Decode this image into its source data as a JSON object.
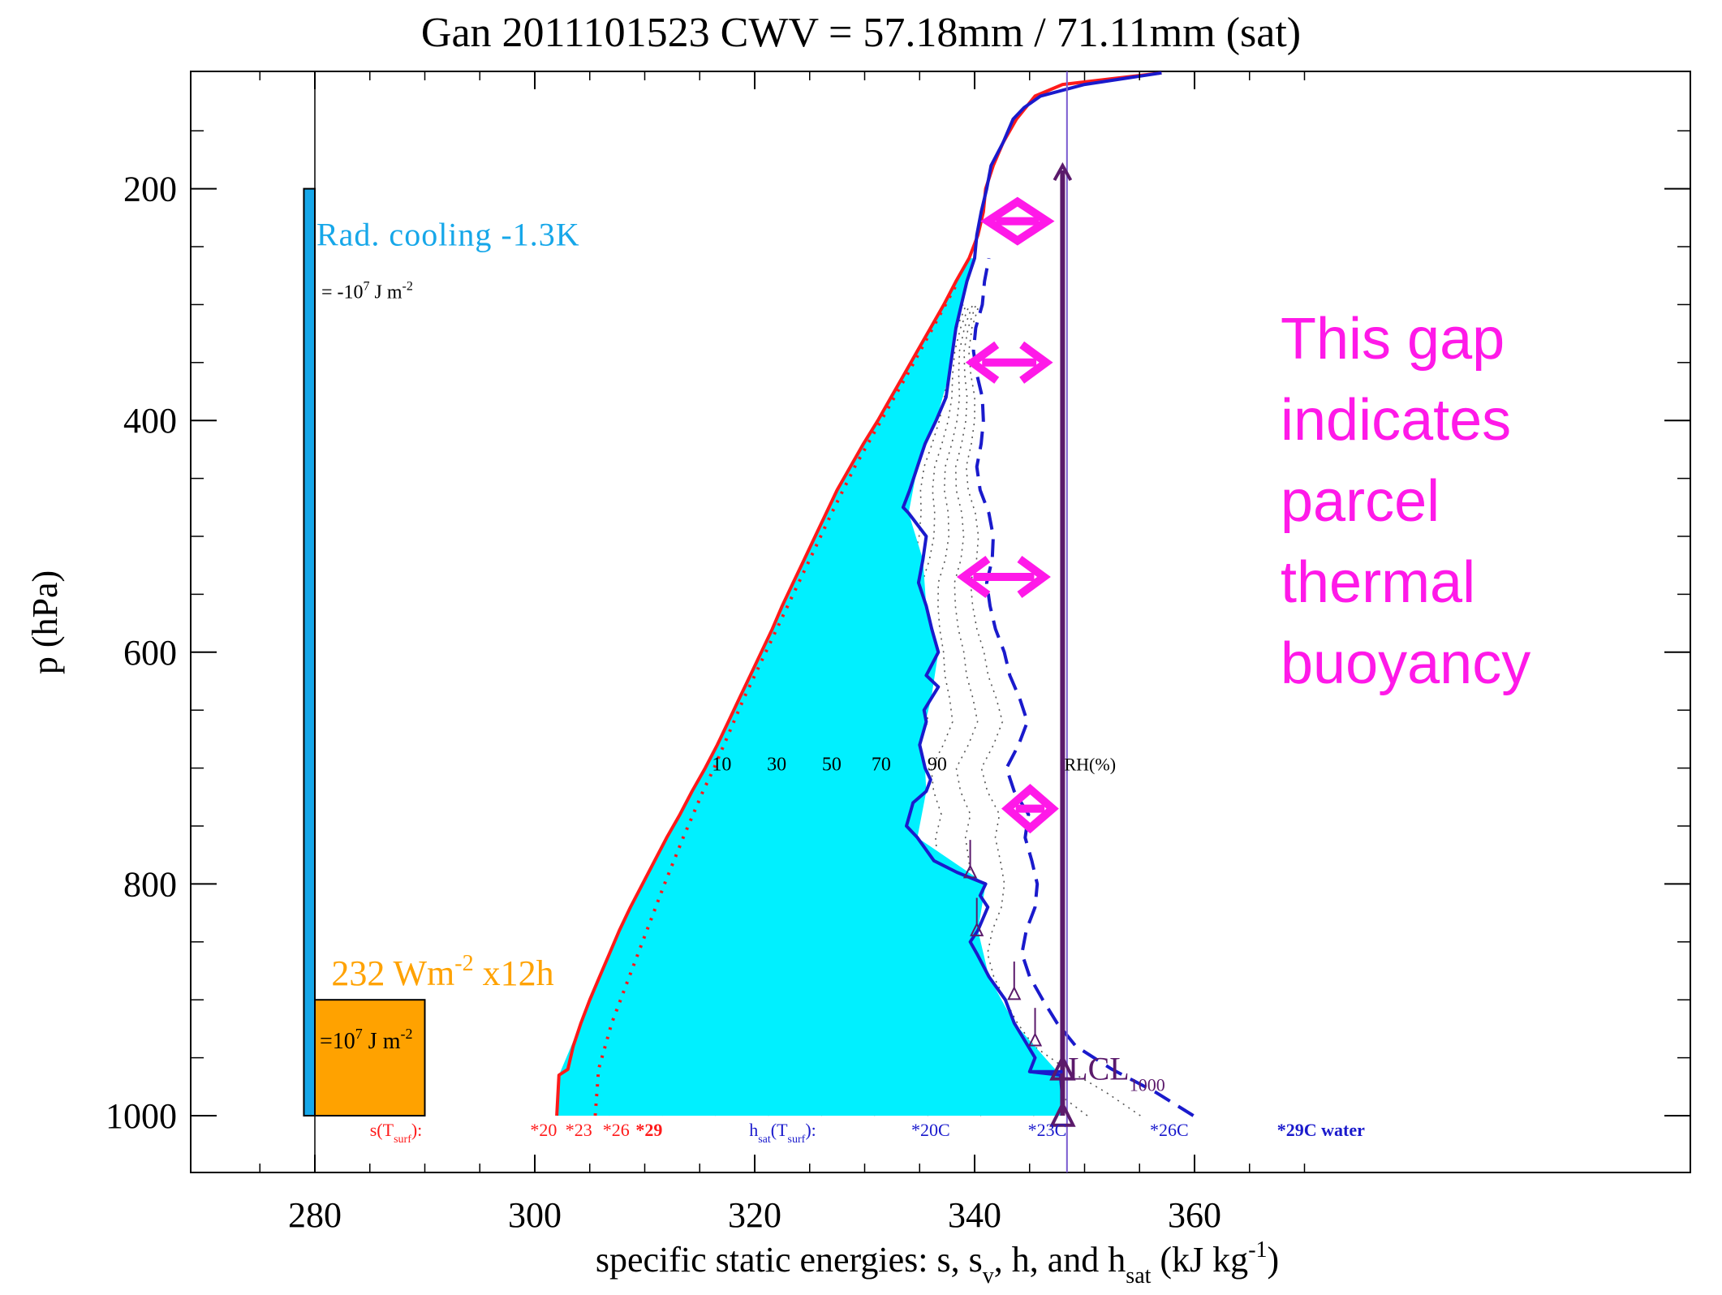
{
  "chart_data": {
    "type": "line",
    "title": "Gan 2011101523  CWV = 57.18mm / 71.11mm (sat)",
    "xlabel": {
      "main": "specific static energies: s, s",
      "sub_v": "v",
      "mid": ", h, and h",
      "sub_sat": "sat",
      "units_pre": " (kJ  kg",
      "units_sup": "-1",
      "units_post": ")"
    },
    "ylabel": "p (hPa)",
    "xlim": [
      270,
      375
    ],
    "ylim": [
      1050,
      100
    ],
    "y_inverted": true,
    "x_ticks": [
      280,
      300,
      320,
      340,
      360
    ],
    "x_tick_labels": [
      "280",
      "300",
      "320",
      "340",
      "360"
    ],
    "y_ticks": [
      200,
      400,
      600,
      800,
      1000
    ],
    "y_tick_labels": [
      "200",
      "400",
      "600",
      "800",
      "1000"
    ],
    "grid": false,
    "colors": {
      "s_line": "#ff1a1a",
      "h_line": "#1a1acc",
      "hsat_line": "#1a1acc",
      "fill": "#00f0ff",
      "rad_bar": "#16a7e9",
      "flux_box": "#ffa200",
      "lcl": "#5b1a6b",
      "annot": "#ff19e8",
      "vertical_ref": "#7a5ad0",
      "rh_lines": "#555555"
    },
    "series": [
      {
        "name": "s",
        "color": "#ff1a1a",
        "p": [
          1000,
          965,
          960,
          940,
          920,
          900,
          880,
          860,
          840,
          820,
          800,
          780,
          760,
          740,
          720,
          700,
          680,
          660,
          640,
          620,
          600,
          580,
          560,
          540,
          520,
          500,
          480,
          460,
          440,
          420,
          400,
          380,
          360,
          340,
          320,
          300,
          280,
          260,
          240,
          220,
          200,
          180,
          160,
          140,
          120,
          110,
          100
        ],
        "x": [
          302.0,
          302.2,
          303.0,
          303.5,
          304.2,
          305.0,
          305.9,
          306.8,
          307.7,
          308.7,
          309.8,
          310.9,
          312.0,
          313.2,
          314.3,
          315.5,
          316.6,
          317.6,
          318.6,
          319.6,
          320.6,
          321.6,
          322.5,
          323.5,
          324.5,
          325.5,
          326.5,
          327.5,
          328.7,
          329.9,
          331.2,
          332.4,
          333.6,
          334.8,
          336.0,
          337.2,
          338.3,
          339.5,
          340.3,
          340.8,
          341.0,
          341.7,
          342.6,
          343.8,
          345.5,
          348.0,
          357.0
        ]
      },
      {
        "name": "s_v",
        "color": "#ff1a1a",
        "p": [
          1000,
          960,
          920,
          880,
          840,
          800,
          760,
          720,
          700,
          680,
          640,
          600,
          560,
          520,
          480,
          440,
          400,
          360,
          320,
          280
        ],
        "x": [
          305.5,
          305.8,
          307.0,
          308.6,
          310.2,
          311.8,
          313.5,
          315.3,
          316.3,
          317.2,
          319.0,
          321.0,
          323.0,
          325.0,
          327.0,
          329.1,
          331.5,
          333.9,
          336.2,
          338.5
        ]
      },
      {
        "name": "h",
        "color": "#1a1acc",
        "p": [
          1000,
          985,
          965,
          962,
          950,
          920,
          900,
          880,
          860,
          850,
          840,
          820,
          810,
          800,
          790,
          780,
          760,
          750,
          730,
          720,
          710,
          700,
          680,
          660,
          650,
          630,
          620,
          600,
          580,
          560,
          540,
          520,
          500,
          480,
          475,
          460,
          440,
          420,
          400,
          380,
          360,
          340,
          320,
          300,
          280,
          260,
          240,
          220,
          200,
          180,
          160,
          140,
          130,
          120,
          110,
          100
        ],
        "x": [
          348.0,
          348.0,
          347.8,
          345.0,
          345.5,
          343.6,
          342.8,
          341.3,
          340.2,
          339.6,
          340.3,
          341.2,
          340.5,
          341.0,
          338.4,
          336.3,
          334.8,
          333.8,
          334.4,
          335.6,
          336.0,
          335.5,
          335.0,
          335.6,
          335.4,
          336.7,
          335.6,
          336.7,
          336.1,
          335.6,
          334.9,
          335.3,
          335.6,
          334.0,
          333.5,
          334.1,
          334.8,
          335.5,
          336.5,
          337.4,
          337.7,
          338.0,
          338.3,
          338.8,
          339.3,
          340.0,
          340.2,
          340.6,
          341.1,
          341.5,
          342.6,
          343.5,
          344.5,
          346.0,
          350.0,
          357.0
        ]
      },
      {
        "name": "h_sat",
        "color": "#1a1acc",
        "dashed": true,
        "p": [
          1000,
          980,
          960,
          940,
          920,
          900,
          880,
          860,
          840,
          820,
          800,
          780,
          760,
          740,
          720,
          700,
          680,
          660,
          640,
          620,
          600,
          580,
          560,
          540,
          520,
          500,
          480,
          460,
          440,
          420,
          400,
          380,
          360,
          340,
          320,
          300,
          280,
          260
        ],
        "x": [
          359.9,
          356.5,
          352.5,
          349.2,
          347.5,
          346.2,
          345.0,
          344.3,
          344.7,
          345.5,
          345.7,
          345.2,
          344.6,
          344.9,
          343.6,
          342.9,
          344.0,
          344.8,
          344.1,
          343.2,
          342.7,
          341.9,
          341.4,
          341.1,
          341.6,
          341.7,
          341.3,
          340.5,
          340.2,
          340.6,
          340.8,
          340.7,
          340.2,
          339.9,
          340.1,
          340.7,
          340.9,
          341.3
        ]
      }
    ],
    "shaded_region": {
      "between": [
        "s",
        "h"
      ],
      "color": "#00f0ff",
      "p": [
        1000,
        965,
        920,
        880,
        840,
        800,
        760,
        720,
        700,
        680,
        640,
        600,
        560,
        520,
        480,
        440,
        400,
        360,
        320,
        280,
        260
      ]
    },
    "rh_contours": {
      "levels_labeled": [
        "10",
        "30",
        "50",
        "70",
        "90"
      ],
      "label_p": 695,
      "label_x": [
        317.0,
        322.0,
        327.0,
        331.5,
        336.6
      ],
      "rh_unit_label": "RH(%)",
      "rh_unit_x": 350.5
    },
    "vertical_reference": {
      "x": 348.4,
      "color": "#7a5ad0"
    },
    "parcel_arrow": {
      "x": 348.0,
      "p_start": 1000,
      "p_end": 180,
      "color": "#5b1a6b"
    },
    "lcl": {
      "label": "LCL",
      "subscript": "1000",
      "p": 962,
      "x": 348.0
    },
    "markers_triangle": [
      {
        "x": 348.0,
        "p": 1000
      },
      {
        "x": 348.0,
        "p": 960
      },
      {
        "x": 345.5,
        "p": 935
      },
      {
        "x": 343.6,
        "p": 895
      },
      {
        "x": 340.2,
        "p": 840
      },
      {
        "x": 339.6,
        "p": 790
      }
    ],
    "surface_temps": {
      "s_label": "s(T",
      "s_label_sub": "surf",
      "s_label_end": "):",
      "s_values": [
        {
          "label": "*20",
          "x": 300.8
        },
        {
          "label": "*23",
          "x": 304.0
        },
        {
          "label": "*26",
          "x": 307.4
        },
        {
          "label": "*29",
          "x": 310.4
        }
      ],
      "h_label": "h",
      "h_label_sub1": "sat",
      "h_label_mid": "(T",
      "h_label_sub2": "surf",
      "h_label_end": "):",
      "h_values": [
        {
          "label": "*20C",
          "x": 336.0
        },
        {
          "label": "*23C",
          "x": 346.6
        },
        {
          "label": "*26C",
          "x": 357.7
        },
        {
          "label": "*29C water",
          "x": 371.5
        }
      ]
    },
    "rad_cooling": {
      "label": "Rad. cooling -1.3K",
      "energy_pre": "= -10",
      "energy_exp": "7",
      "energy_post": " J  m",
      "energy_sup": "-2",
      "x": [
        279,
        280
      ],
      "p_top": 200,
      "p_bottom": 1000
    },
    "surface_flux": {
      "label_pre": "232  Wm",
      "label_sup": "-2",
      "label_post": " x12h",
      "energy_pre": "=10",
      "energy_exp": "7",
      "energy_post": " J  m",
      "energy_sup": "-2",
      "x": [
        280,
        290
      ],
      "p_top": 900,
      "p_bottom": 1000
    },
    "annotation": {
      "lines": [
        "This gap",
        "indicates",
        "parcel",
        "thermal",
        "buoyancy"
      ],
      "color": "#ff19e8",
      "arrows": [
        {
          "p": 228,
          "x1": 341.2,
          "x2": 346.6,
          "style": "diamond"
        },
        {
          "p": 350,
          "x1": 339.5,
          "x2": 346.8,
          "style": "double"
        },
        {
          "p": 535,
          "x1": 338.7,
          "x2": 346.6,
          "style": "double"
        },
        {
          "p": 735,
          "x1": 343.0,
          "x2": 347.1,
          "style": "diamond"
        }
      ]
    }
  }
}
